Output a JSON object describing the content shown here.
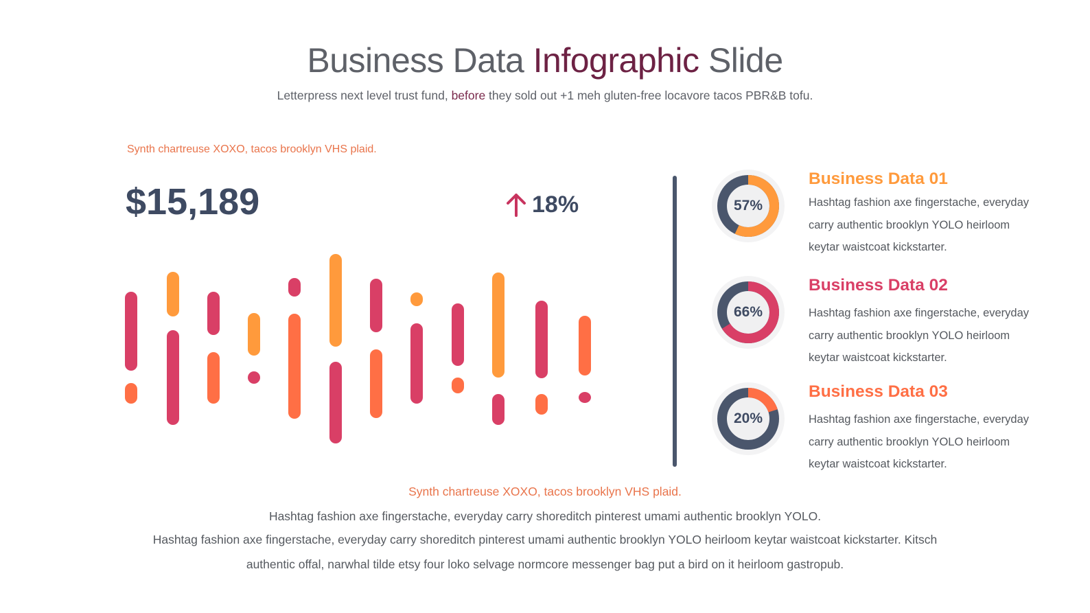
{
  "title": {
    "part1": "Business Data ",
    "accent": "Infographic",
    "part2": " Slide"
  },
  "subtitle": {
    "part1": "Letterpress next level trust fund, ",
    "accent": "before",
    "part2": " they sold out +1 meh gluten-free locavore tacos PBR&B tofu."
  },
  "tagline_top": "Synth chartreuse XOXO, tacos brooklyn VHS plaid.",
  "big_value": "$15,189",
  "growth": {
    "value": "18%",
    "arrow_icon": "arrow-up-icon",
    "arrow_color": "#c8345f"
  },
  "colors": {
    "pink": "#d93f66",
    "orange": "#ff9a3c",
    "coral": "#ff6f45",
    "navy": "#4a566c",
    "dark_text": "#3e4a62"
  },
  "donuts": [
    {
      "percent": 57,
      "label": "57%",
      "title": "Business Data 01",
      "color": "#ff9a3c",
      "text": "Hashtag fashion axe fingerstache, everyday carry authentic brooklyn YOLO heirloom keytar waistcoat kickstarter."
    },
    {
      "percent": 66,
      "label": "66%",
      "title": "Business Data 02",
      "color": "#d93f66",
      "text": "Hashtag fashion axe fingerstache, everyday carry authentic brooklyn YOLO heirloom keytar waistcoat kickstarter."
    },
    {
      "percent": 20,
      "label": "20%",
      "title": "Business Data 03",
      "color": "#ff6f45",
      "text": "Hashtag fashion axe fingerstache, everyday carry authentic brooklyn YOLO heirloom keytar waistcoat kickstarter."
    }
  ],
  "tagline_bottom": "Synth chartreuse XOXO, tacos brooklyn VHS plaid.",
  "footer": {
    "line1": "Hashtag fashion axe fingerstache, everyday carry shoreditch pinterest umami authentic brooklyn YOLO.",
    "line2": "Hashtag fashion axe fingerstache, everyday carry shoreditch pinterest umami authentic brooklyn YOLO heirloom keytar waistcoat kickstarter. Kitsch",
    "line3": "authentic offal, narwhal tilde etsy four loko selvage normcore messenger bag put a bird on it heirloom gastropub."
  }
}
